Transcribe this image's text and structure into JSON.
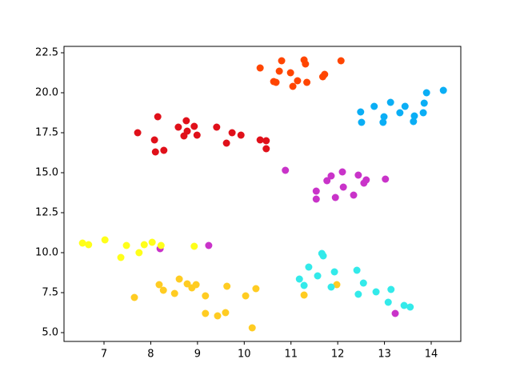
{
  "chart_data": {
    "type": "scatter",
    "xlim": [
      6.144,
      14.633
    ],
    "ylim": [
      4.45,
      22.9
    ],
    "xticks": [
      7,
      8,
      9,
      10,
      11,
      12,
      13,
      14
    ],
    "yticks": [
      {
        "value": 5,
        "label": "5.0"
      },
      7.5,
      {
        "value": 10,
        "label": "10.0"
      },
      12.5,
      {
        "value": 15,
        "label": "15.0"
      },
      17.5,
      {
        "value": 20,
        "label": "20.0"
      },
      22.5
    ],
    "series": [
      {
        "color": "#ff4500",
        "x": [
          10.34,
          10.8,
          11.28,
          11.31,
          10.75,
          10.99,
          10.63,
          10.68,
          11.14,
          11.04,
          11.34,
          11.68,
          11.72,
          12.07
        ],
        "y": [
          21.55,
          22.0,
          22.05,
          21.8,
          21.35,
          21.25,
          20.7,
          20.65,
          20.75,
          20.4,
          20.65,
          21.0,
          21.15,
          22.0
        ]
      },
      {
        "color": "#0aaef5",
        "x": [
          12.49,
          12.51,
          12.78,
          12.99,
          12.97,
          13.13,
          13.33,
          13.44,
          13.64,
          13.62,
          13.83,
          13.85,
          13.9,
          14.26
        ],
        "y": [
          18.8,
          18.15,
          19.15,
          18.5,
          18.15,
          19.4,
          18.75,
          19.15,
          18.55,
          18.2,
          18.75,
          19.35,
          20.0,
          20.15
        ]
      },
      {
        "color": "#e0101a",
        "x": [
          7.72,
          8.15,
          8.08,
          8.1,
          8.28,
          8.59,
          8.76,
          8.78,
          8.71,
          8.93,
          8.99,
          9.41,
          9.62,
          9.74,
          9.93,
          10.34,
          10.47,
          10.47
        ],
        "y": [
          17.5,
          18.5,
          17.05,
          16.3,
          16.4,
          17.85,
          18.25,
          17.6,
          17.3,
          17.9,
          17.35,
          17.85,
          16.85,
          17.5,
          17.35,
          17.05,
          17.0,
          16.5
        ]
      },
      {
        "color": "#c933c9",
        "x": [
          10.88,
          11.86,
          11.77,
          12.1,
          12.12,
          11.54,
          11.54,
          11.95,
          12.34,
          12.44,
          12.61,
          12.56,
          13.02,
          8.2,
          9.24,
          13.23
        ],
        "y": [
          15.15,
          14.8,
          14.5,
          15.05,
          14.1,
          13.85,
          13.35,
          13.45,
          13.6,
          14.85,
          14.55,
          14.35,
          14.6,
          10.25,
          10.45,
          6.2
        ]
      },
      {
        "color": "#ffff1a",
        "x": [
          6.54,
          6.67,
          7.02,
          7.36,
          7.48,
          7.75,
          7.86,
          8.03,
          8.22,
          8.93
        ],
        "y": [
          10.6,
          10.5,
          10.8,
          9.7,
          10.45,
          10.0,
          10.5,
          10.65,
          10.45,
          10.4
        ]
      },
      {
        "color": "#ffcc22",
        "x": [
          7.65,
          8.18,
          8.27,
          8.51,
          8.61,
          8.78,
          8.88,
          8.97,
          9.17,
          9.17,
          9.43,
          9.6,
          9.63,
          10.03,
          10.25,
          10.17,
          11.28,
          11.98
        ],
        "y": [
          7.2,
          8.0,
          7.65,
          7.45,
          8.35,
          8.05,
          7.8,
          8.0,
          7.3,
          6.2,
          6.05,
          6.25,
          7.9,
          7.3,
          7.75,
          5.3,
          7.35,
          8.0
        ]
      },
      {
        "color": "#33eaea",
        "x": [
          11.66,
          11.69,
          11.38,
          11.18,
          11.28,
          11.57,
          11.86,
          11.93,
          12.41,
          12.55,
          12.44,
          12.82,
          13.14,
          13.08,
          13.42,
          13.55
        ],
        "y": [
          9.95,
          9.8,
          9.1,
          8.35,
          7.95,
          8.55,
          7.85,
          8.8,
          8.9,
          8.1,
          7.4,
          7.55,
          7.7,
          6.9,
          6.7,
          6.6
        ]
      }
    ]
  }
}
